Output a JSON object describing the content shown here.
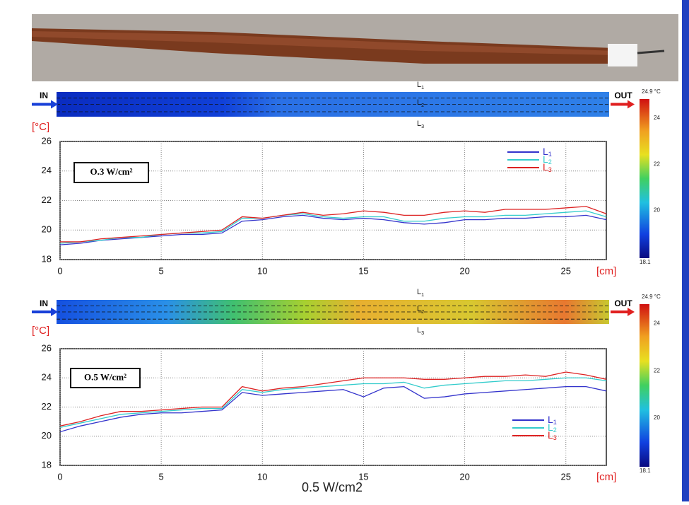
{
  "chart_data": [
    {
      "type": "line",
      "annotation": "O.3 W/cm²",
      "ylabel": "[°C]",
      "xlabel": "[cm]",
      "x": [
        0,
        1,
        2,
        3,
        4,
        5,
        6,
        7,
        8,
        9,
        10,
        11,
        12,
        13,
        14,
        15,
        16,
        17,
        18,
        19,
        20,
        21,
        22,
        23,
        24,
        25,
        26,
        27
      ],
      "series": [
        {
          "name": "L1",
          "color": "#3333cc",
          "values": [
            19.0,
            19.1,
            19.3,
            19.4,
            19.5,
            19.6,
            19.7,
            19.7,
            19.8,
            20.6,
            20.7,
            20.9,
            21.0,
            20.8,
            20.7,
            20.8,
            20.7,
            20.5,
            20.4,
            20.5,
            20.7,
            20.7,
            20.8,
            20.8,
            20.9,
            20.9,
            21.0,
            20.7
          ]
        },
        {
          "name": "L2",
          "color": "#33cccc",
          "values": [
            19.1,
            19.2,
            19.3,
            19.5,
            19.5,
            19.7,
            19.8,
            19.8,
            19.9,
            20.8,
            20.8,
            21.0,
            21.1,
            20.9,
            20.8,
            20.9,
            20.9,
            20.6,
            20.6,
            20.8,
            20.9,
            20.9,
            21.0,
            21.0,
            21.1,
            21.2,
            21.3,
            20.9
          ]
        },
        {
          "name": "L3",
          "color": "#dd2222",
          "values": [
            19.2,
            19.2,
            19.4,
            19.5,
            19.6,
            19.7,
            19.8,
            19.9,
            20.0,
            20.9,
            20.8,
            21.0,
            21.2,
            21.0,
            21.1,
            21.3,
            21.2,
            21.0,
            21.0,
            21.2,
            21.3,
            21.2,
            21.4,
            21.4,
            21.4,
            21.5,
            21.6,
            21.1
          ]
        }
      ],
      "xlim": [
        0,
        27
      ],
      "xticks": [
        0,
        5,
        10,
        15,
        20,
        25
      ],
      "ylim": [
        18,
        26
      ],
      "yticks": [
        18,
        20,
        22,
        24,
        26
      ],
      "grid": true
    },
    {
      "type": "line",
      "annotation": "O.5 W/cm²",
      "ylabel": "[°C]",
      "xlabel": "[cm]",
      "x": [
        0,
        1,
        2,
        3,
        4,
        5,
        6,
        7,
        8,
        9,
        10,
        11,
        12,
        13,
        14,
        15,
        16,
        17,
        18,
        19,
        20,
        21,
        22,
        23,
        24,
        25,
        26,
        27
      ],
      "series": [
        {
          "name": "L1",
          "color": "#3333cc",
          "values": [
            20.3,
            20.7,
            21.0,
            21.3,
            21.5,
            21.6,
            21.6,
            21.7,
            21.8,
            23.0,
            22.8,
            22.9,
            23.0,
            23.1,
            23.2,
            22.7,
            23.3,
            23.4,
            22.6,
            22.7,
            22.9,
            23.0,
            23.1,
            23.2,
            23.3,
            23.4,
            23.4,
            23.1
          ]
        },
        {
          "name": "L2",
          "color": "#33cccc",
          "values": [
            20.6,
            20.9,
            21.2,
            21.5,
            21.6,
            21.7,
            21.8,
            21.9,
            21.9,
            23.2,
            23.0,
            23.2,
            23.3,
            23.4,
            23.5,
            23.6,
            23.6,
            23.7,
            23.3,
            23.5,
            23.6,
            23.7,
            23.8,
            23.8,
            23.9,
            24.0,
            24.0,
            23.8
          ]
        },
        {
          "name": "L3",
          "color": "#dd2222",
          "values": [
            20.7,
            21.0,
            21.4,
            21.7,
            21.7,
            21.8,
            21.9,
            22.0,
            22.0,
            23.4,
            23.1,
            23.3,
            23.4,
            23.6,
            23.8,
            24.0,
            24.0,
            24.0,
            23.9,
            23.9,
            24.0,
            24.1,
            24.1,
            24.2,
            24.1,
            24.4,
            24.2,
            23.9
          ]
        }
      ],
      "xlim": [
        0,
        27
      ],
      "xticks": [
        0,
        5,
        10,
        15,
        20,
        25
      ],
      "ylim": [
        18,
        26
      ],
      "yticks": [
        18,
        20,
        22,
        24,
        26
      ],
      "grid": true
    }
  ],
  "thermal_strips": [
    {
      "inlet": "IN",
      "outlet": "OUT",
      "lines": [
        "L1",
        "L2",
        "L3"
      ],
      "colorbar": {
        "max": "24.9 °C",
        "ticks": [
          "24",
          "22",
          "20"
        ],
        "min": "18.1"
      }
    },
    {
      "inlet": "IN",
      "outlet": "OUT",
      "lines": [
        "L1",
        "L2",
        "L3"
      ],
      "colorbar": {
        "max": "24.9 °C",
        "ticks": [
          "24",
          "22",
          "20"
        ],
        "min": "18.1"
      }
    }
  ],
  "caption": "0.5 W/cm2"
}
